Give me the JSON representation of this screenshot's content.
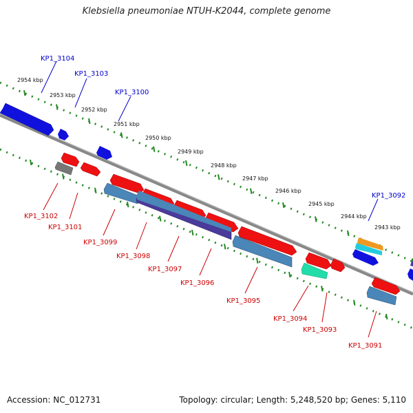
{
  "title": "Klebsiella pneumoniae NTUH-K2044, complete genome",
  "footer": {
    "accession": "Accession: NC_012731",
    "topology": "Topology: circular; Length: 5,248,520 bp; Genes: 5,110"
  },
  "colors": {
    "backbone": "#888888",
    "tick_track": "#228822",
    "forward_gene": "#1111dd",
    "reverse_gene": "#ee1111",
    "cds_steel": "#4a86b8",
    "cds_purple": "#4a3a9a",
    "pseudo_gray": "#777777",
    "teal": "#22ddaa",
    "orange": "#ee9922",
    "cyan": "#22ccdd",
    "label_forward": "#0000cc",
    "label_reverse": "#cc0000"
  },
  "kbp_ticks": [
    "2954 kbp",
    "2953 kbp",
    "2952 kbp",
    "2951 kbp",
    "2950 kbp",
    "2949 kbp",
    "2948 kbp",
    "2947 kbp",
    "2946 kbp",
    "2945 kbp",
    "2944 kbp",
    "2943 kbp"
  ],
  "forward_labels": [
    "KP1_3104",
    "KP1_3103",
    "KP1_3100",
    "KP1_3092"
  ],
  "reverse_labels": [
    "KP1_3102",
    "KP1_3101",
    "KP1_3099",
    "KP1_3098",
    "KP1_3097",
    "KP1_3096",
    "KP1_3095",
    "KP1_3094",
    "KP1_3093",
    "KP1_3091"
  ]
}
